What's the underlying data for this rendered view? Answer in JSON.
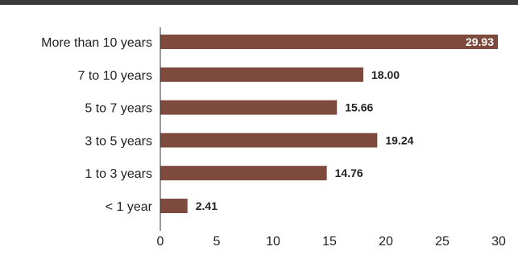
{
  "chart_data": {
    "type": "bar",
    "orientation": "horizontal",
    "categories": [
      "More than 10 years",
      "7 to 10 years",
      "5 to 7 years",
      "3 to 5 years",
      "1 to 3 years",
      "< 1 year"
    ],
    "values": [
      29.93,
      18.0,
      15.66,
      19.24,
      14.76,
      2.41
    ],
    "value_labels": [
      "29.93",
      "18.00",
      "15.66",
      "19.24",
      "14.76",
      "2.41"
    ],
    "xlim": [
      0,
      30
    ],
    "xticks": [
      "0",
      "5",
      "10",
      "15",
      "20",
      "25",
      "30"
    ],
    "title": "",
    "xlabel": "",
    "ylabel": "",
    "grid": false,
    "legend": "none",
    "colors": {
      "bar": "#7f4a3e",
      "top_rule": "#3a3a3a",
      "axis": "#333333"
    }
  }
}
